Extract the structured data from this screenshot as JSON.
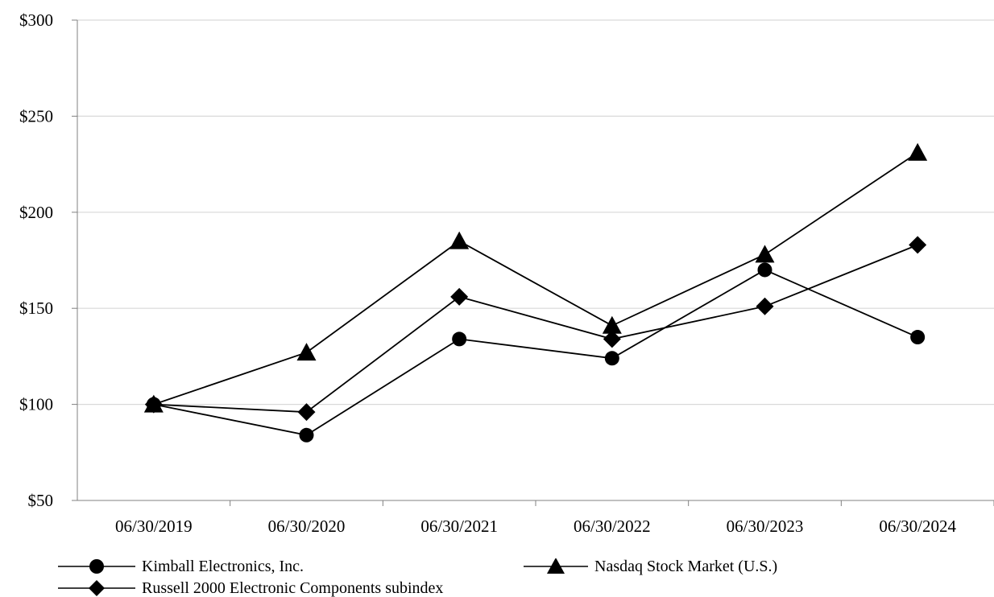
{
  "chart_data": {
    "type": "line",
    "categories": [
      "06/30/2019",
      "06/30/2020",
      "06/30/2021",
      "06/30/2022",
      "06/30/2023",
      "06/30/2024"
    ],
    "yticks": [
      "$50",
      "$100",
      "$150",
      "$200",
      "$250",
      "$300"
    ],
    "ylim": [
      50,
      300
    ],
    "grid": true,
    "legend_position": "bottom",
    "series": [
      {
        "name": "Kimball Electronics, Inc.",
        "marker": "circle",
        "values": [
          100,
          84,
          134,
          124,
          170,
          135
        ]
      },
      {
        "name": "Nasdaq Stock Market (U.S.)",
        "marker": "triangle",
        "values": [
          100,
          127,
          185,
          141,
          178,
          231
        ]
      },
      {
        "name": "Russell 2000 Electronic Components subindex",
        "marker": "diamond",
        "values": [
          100,
          96,
          156,
          134,
          151,
          183
        ]
      }
    ],
    "colors": {
      "line": "#000000",
      "grid": "#d9d9d9",
      "axis": "#808080"
    }
  }
}
